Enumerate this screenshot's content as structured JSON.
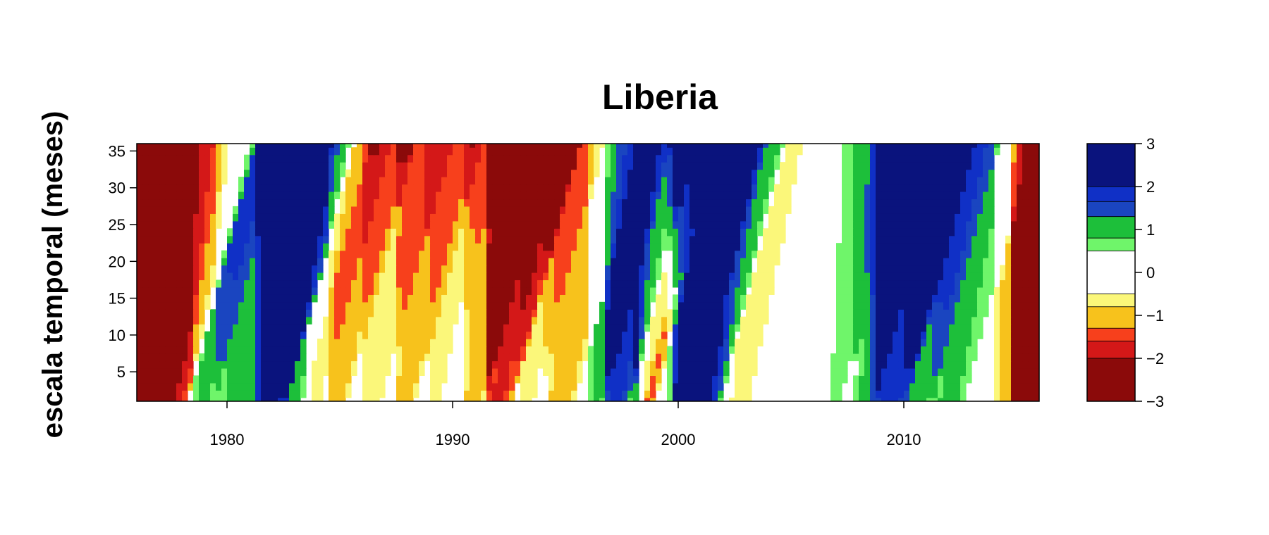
{
  "chart_data": {
    "type": "heatmap",
    "title": "Liberia",
    "xlabel": "",
    "ylabel": "escala temporal (meses)",
    "xlim": [
      1976,
      2016
    ],
    "ylim": [
      1,
      36
    ],
    "x_ticks": [
      "1980",
      "1990",
      "2000",
      "2010"
    ],
    "y_ticks": [
      "5",
      "10",
      "15",
      "20",
      "25",
      "30",
      "35"
    ],
    "colorbar": {
      "range": [
        -3,
        3
      ],
      "tick_labels": [
        "3",
        "2",
        "1",
        "0",
        "−1",
        "−2",
        "−3"
      ],
      "bands": [
        {
          "from": 2.0,
          "to": 3.0,
          "color": "#0a137d"
        },
        {
          "from": 1.65,
          "to": 2.0,
          "color": "#1030c6"
        },
        {
          "from": 1.3,
          "to": 1.65,
          "color": "#1a45c0"
        },
        {
          "from": 0.8,
          "to": 1.3,
          "color": "#1dbf3a"
        },
        {
          "from": 0.5,
          "to": 0.8,
          "color": "#6ff56a"
        },
        {
          "from": -0.5,
          "to": 0.5,
          "color": "#ffffff"
        },
        {
          "from": -0.8,
          "to": -0.5,
          "color": "#fbf77a"
        },
        {
          "from": -1.3,
          "to": -0.8,
          "color": "#f7c21c"
        },
        {
          "from": -1.6,
          "to": -1.3,
          "color": "#f7401c"
        },
        {
          "from": -2.0,
          "to": -1.6,
          "color": "#d41818"
        },
        {
          "from": -3.0,
          "to": -2.0,
          "color": "#8b0a0a"
        }
      ]
    },
    "events": [
      {
        "start": 1974.6,
        "end": 1978.3,
        "value": -2.6
      },
      {
        "start": 1978.5,
        "end": 1979.5,
        "value": 0.9
      },
      {
        "start": 1979.5,
        "end": 1981.7,
        "value": 1.0
      },
      {
        "start": 1981.3,
        "end": 1982.7,
        "value": 2.2
      },
      {
        "start": 1982.4,
        "end": 1983.4,
        "value": 0.9
      },
      {
        "start": 1983.5,
        "end": 1984.3,
        "value": -0.6
      },
      {
        "start": 1984.4,
        "end": 1985.4,
        "value": -1.0
      },
      {
        "start": 1985.9,
        "end": 1987.0,
        "value": -0.7
      },
      {
        "start": 1987.4,
        "end": 1988.4,
        "value": -1.0
      },
      {
        "start": 1988.8,
        "end": 1989.6,
        "value": -0.6
      },
      {
        "start": 1990.4,
        "end": 1991.5,
        "value": -1.0
      },
      {
        "start": 1991.4,
        "end": 1992.7,
        "value": -1.7
      },
      {
        "start": 1992.8,
        "end": 1993.8,
        "value": -0.6
      },
      {
        "start": 1994.1,
        "end": 1995.5,
        "value": -1.0
      },
      {
        "start": 1995.9,
        "end": 1996.8,
        "value": 0.9
      },
      {
        "start": 1996.7,
        "end": 1997.9,
        "value": 1.8
      },
      {
        "start": 1997.9,
        "end": 1998.6,
        "value": 0.9
      },
      {
        "start": 1998.3,
        "end": 1999.0,
        "value": -1.5
      },
      {
        "start": 1999.5,
        "end": 2000.9,
        "value": 1.1
      },
      {
        "start": 1999.8,
        "end": 2001.9,
        "value": 2.3
      },
      {
        "start": 2002.1,
        "end": 2003.4,
        "value": -0.6
      },
      {
        "start": 2006.6,
        "end": 2007.4,
        "value": 0.6
      },
      {
        "start": 2007.8,
        "end": 2008.8,
        "value": 0.9
      },
      {
        "start": 2008.6,
        "end": 2010.2,
        "value": 1.9
      },
      {
        "start": 2010.1,
        "end": 2011.3,
        "value": 1.0
      },
      {
        "start": 2011.2,
        "end": 2012.8,
        "value": 0.9
      },
      {
        "start": 2014.0,
        "end": 2015.4,
        "value": -1.1
      },
      {
        "start": 2014.7,
        "end": 2017.0,
        "value": -2.3
      }
    ]
  }
}
